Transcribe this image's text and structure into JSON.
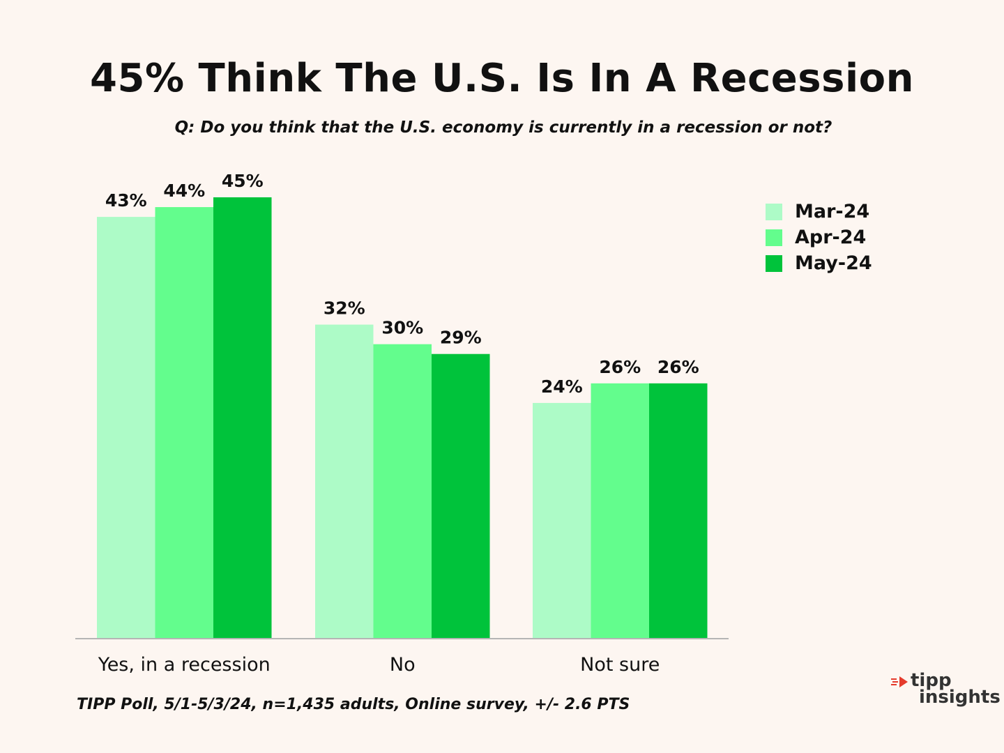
{
  "title": "45% Think The U.S. Is In A Recession",
  "subtitle": "Q:  Do you think that the U.S. economy is currently in a recession or not?",
  "footer": "TIPP Poll, 5/1-5/3/24, n=1,435 adults, Online survey, +/- 2.6 PTS",
  "logo": {
    "line1": "tipp",
    "line2": "insights"
  },
  "colors": {
    "mar": "#adfbc7",
    "apr": "#63fd8d",
    "may": "#00c33b",
    "axis": "#b5b5b5",
    "logo_accent": "#e53b2c"
  },
  "chart_data": {
    "type": "bar",
    "title": "45% Think The U.S. Is In A Recession",
    "categories": [
      "Yes, in a recession",
      "No",
      "Not sure"
    ],
    "series": [
      {
        "name": "Mar-24",
        "values": [
          43,
          32,
          24
        ],
        "labels": [
          "43%",
          "32%",
          "24%"
        ]
      },
      {
        "name": "Apr-24",
        "values": [
          44,
          30,
          26
        ],
        "labels": [
          "44%",
          "30%",
          "26%"
        ]
      },
      {
        "name": "May-24",
        "values": [
          45,
          29,
          26
        ],
        "labels": [
          "45%",
          "29%",
          "26%"
        ]
      }
    ],
    "xlabel": "",
    "ylabel": "",
    "ylim": [
      0,
      50
    ],
    "grid": false,
    "legend": "top-right"
  }
}
